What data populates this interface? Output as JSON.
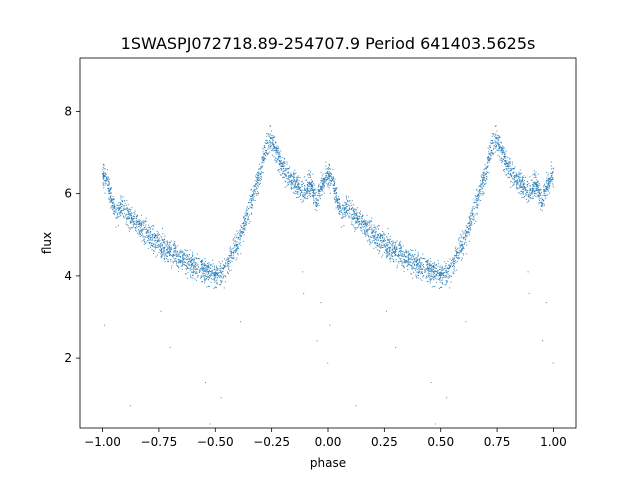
{
  "chart_data": {
    "type": "scatter",
    "title": "1SWASPJ072718.89-254707.9 Period 641403.5625s",
    "xlabel": "phase",
    "ylabel": "flux",
    "xlim": [
      -1.1,
      1.1
    ],
    "ylim": [
      0.3,
      9.3
    ],
    "x_ticks": [
      -1.0,
      -0.75,
      -0.5,
      -0.25,
      0.0,
      0.25,
      0.5,
      0.75,
      1.0
    ],
    "x_tick_labels": [
      "−1.00",
      "−0.75",
      "−0.50",
      "−0.25",
      "0.00",
      "0.25",
      "0.50",
      "0.75",
      "1.00"
    ],
    "y_ticks": [
      2,
      4,
      6,
      8
    ],
    "y_tick_labels": [
      "2",
      "4",
      "6",
      "8"
    ],
    "grid": false,
    "marker_color": "#1f77b4",
    "light_curve": {
      "phase": [
        0.0,
        0.02,
        0.04,
        0.06,
        0.08,
        0.1,
        0.15,
        0.2,
        0.25,
        0.3,
        0.35,
        0.4,
        0.45,
        0.5,
        0.55,
        0.6,
        0.65,
        0.7,
        0.72,
        0.74,
        0.76,
        0.78,
        0.8,
        0.85,
        0.88,
        0.9,
        0.92,
        0.95,
        0.97,
        1.0
      ],
      "flux": [
        6.5,
        6.3,
        5.9,
        5.5,
        5.7,
        5.6,
        5.3,
        5.0,
        4.8,
        4.6,
        4.4,
        4.25,
        4.15,
        4.0,
        4.2,
        4.8,
        5.6,
        6.5,
        7.0,
        7.3,
        7.2,
        6.9,
        6.6,
        6.3,
        6.1,
        6.0,
        6.3,
        5.8,
        6.2,
        6.5
      ],
      "scatter": 0.25,
      "n_points_per_cycle": 2200,
      "outliers_per_cycle": 14
    }
  }
}
